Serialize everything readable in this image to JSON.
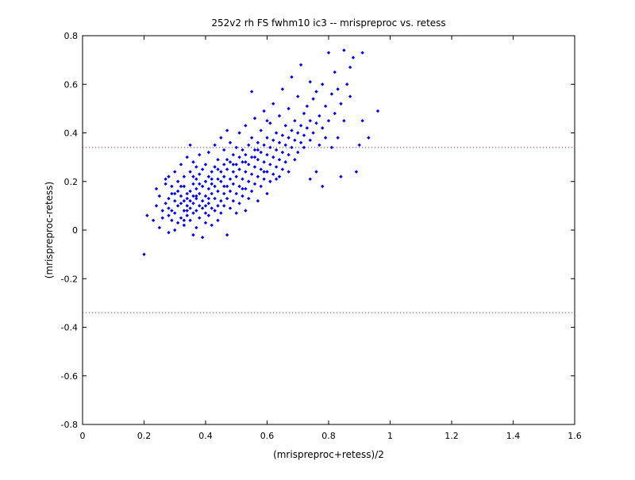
{
  "chart_data": {
    "type": "scatter",
    "title": "252v2 rh FS fwhm10 ic3 -- mrispreproc vs. retess",
    "xlabel": "(mrispreproc+retess)/2",
    "ylabel": "(mrispreproc-retess)",
    "xlim": [
      0,
      1.6
    ],
    "ylim": [
      -0.8,
      0.8
    ],
    "xticks": [
      "0",
      "0.2",
      "0.4",
      "0.6",
      "0.8",
      "1",
      "1.2",
      "1.4",
      "1.6"
    ],
    "yticks": [
      "0.8",
      "0.6",
      "0.4",
      "0.2",
      "0",
      "-0.2",
      "-0.4",
      "-0.6",
      "-0.8"
    ],
    "xtick_values": [
      0,
      0.2,
      0.4,
      0.6,
      0.8,
      1.0,
      1.2,
      1.4,
      1.6
    ],
    "ytick_values": [
      0.8,
      0.6,
      0.4,
      0.2,
      0,
      -0.2,
      -0.4,
      -0.6,
      -0.8
    ],
    "grid": false,
    "marker_color": "#0000ff",
    "reference_color": "#ff0000",
    "reference_lines": [
      0.34,
      -0.34
    ],
    "series": [
      {
        "values": [
          [
            0.2,
            -0.1
          ],
          [
            0.21,
            0.06
          ],
          [
            0.23,
            0.04
          ],
          [
            0.24,
            0.1
          ],
          [
            0.24,
            0.17
          ],
          [
            0.25,
            0.01
          ],
          [
            0.25,
            0.14
          ],
          [
            0.26,
            0.05
          ],
          [
            0.26,
            0.08
          ],
          [
            0.27,
            0.19
          ],
          [
            0.27,
            0.11
          ],
          [
            0.27,
            0.21
          ],
          [
            0.28,
            -0.01
          ],
          [
            0.28,
            0.06
          ],
          [
            0.28,
            0.13
          ],
          [
            0.28,
            0.22
          ],
          [
            0.29,
            0.04
          ],
          [
            0.29,
            0.08
          ],
          [
            0.29,
            0.15
          ],
          [
            0.29,
            0.18
          ],
          [
            0.3,
            0.0
          ],
          [
            0.3,
            0.07
          ],
          [
            0.3,
            0.12
          ],
          [
            0.3,
            0.24
          ],
          [
            0.31,
            0.03
          ],
          [
            0.31,
            0.1
          ],
          [
            0.31,
            0.16
          ],
          [
            0.31,
            0.2
          ],
          [
            0.32,
            0.05
          ],
          [
            0.32,
            0.11
          ],
          [
            0.32,
            0.14
          ],
          [
            0.32,
            0.27
          ],
          [
            0.33,
            0.02
          ],
          [
            0.33,
            0.08
          ],
          [
            0.33,
            0.12
          ],
          [
            0.33,
            0.18
          ],
          [
            0.33,
            0.22
          ],
          [
            0.34,
            0.06
          ],
          [
            0.34,
            0.1
          ],
          [
            0.34,
            0.13
          ],
          [
            0.34,
            0.15
          ],
          [
            0.34,
            0.3
          ],
          [
            0.35,
            0.04
          ],
          [
            0.35,
            0.09
          ],
          [
            0.35,
            0.12
          ],
          [
            0.35,
            0.16
          ],
          [
            0.35,
            0.24
          ],
          [
            0.35,
            0.35
          ],
          [
            0.36,
            -0.02
          ],
          [
            0.36,
            0.07
          ],
          [
            0.36,
            0.11
          ],
          [
            0.36,
            0.14
          ],
          [
            0.36,
            0.19
          ],
          [
            0.36,
            0.28
          ],
          [
            0.37,
            0.01
          ],
          [
            0.37,
            0.08
          ],
          [
            0.37,
            0.13
          ],
          [
            0.37,
            0.17
          ],
          [
            0.37,
            0.21
          ],
          [
            0.37,
            0.26
          ],
          [
            0.38,
            0.05
          ],
          [
            0.38,
            0.1
          ],
          [
            0.38,
            0.15
          ],
          [
            0.38,
            0.23
          ],
          [
            0.38,
            0.31
          ],
          [
            0.39,
            -0.03
          ],
          [
            0.39,
            0.09
          ],
          [
            0.39,
            0.12
          ],
          [
            0.39,
            0.18
          ],
          [
            0.39,
            0.25
          ],
          [
            0.4,
            0.03
          ],
          [
            0.4,
            0.07
          ],
          [
            0.4,
            0.14
          ],
          [
            0.4,
            0.2
          ],
          [
            0.4,
            0.27
          ],
          [
            0.41,
            0.06
          ],
          [
            0.41,
            0.11
          ],
          [
            0.41,
            0.17
          ],
          [
            0.41,
            0.22
          ],
          [
            0.41,
            0.32
          ],
          [
            0.42,
            0.02
          ],
          [
            0.42,
            0.09
          ],
          [
            0.42,
            0.15
          ],
          [
            0.42,
            0.19
          ],
          [
            0.42,
            0.24
          ],
          [
            0.43,
            0.08
          ],
          [
            0.43,
            0.13
          ],
          [
            0.43,
            0.18
          ],
          [
            0.43,
            0.26
          ],
          [
            0.43,
            0.35
          ],
          [
            0.44,
            0.04
          ],
          [
            0.44,
            0.1
          ],
          [
            0.44,
            0.16
          ],
          [
            0.44,
            0.21
          ],
          [
            0.44,
            0.29
          ],
          [
            0.45,
            0.07
          ],
          [
            0.45,
            0.12
          ],
          [
            0.45,
            0.2
          ],
          [
            0.45,
            0.24
          ],
          [
            0.45,
            0.38
          ],
          [
            0.46,
            0.1
          ],
          [
            0.46,
            0.15
          ],
          [
            0.46,
            0.22
          ],
          [
            0.46,
            0.27
          ],
          [
            0.46,
            0.33
          ],
          [
            0.47,
            -0.02
          ],
          [
            0.47,
            0.13
          ],
          [
            0.47,
            0.18
          ],
          [
            0.47,
            0.25
          ],
          [
            0.47,
            0.41
          ],
          [
            0.48,
            0.09
          ],
          [
            0.48,
            0.16
          ],
          [
            0.48,
            0.21
          ],
          [
            0.48,
            0.28
          ],
          [
            0.48,
            0.36
          ],
          [
            0.49,
            0.12
          ],
          [
            0.49,
            0.19
          ],
          [
            0.49,
            0.24
          ],
          [
            0.49,
            0.31
          ],
          [
            0.5,
            0.07
          ],
          [
            0.5,
            0.15
          ],
          [
            0.5,
            0.22
          ],
          [
            0.5,
            0.27
          ],
          [
            0.5,
            0.34
          ],
          [
            0.51,
            0.11
          ],
          [
            0.51,
            0.18
          ],
          [
            0.51,
            0.25
          ],
          [
            0.51,
            0.3
          ],
          [
            0.51,
            0.4
          ],
          [
            0.52,
            0.14
          ],
          [
            0.52,
            0.21
          ],
          [
            0.52,
            0.28
          ],
          [
            0.52,
            0.33
          ],
          [
            0.53,
            0.08
          ],
          [
            0.53,
            0.17
          ],
          [
            0.53,
            0.24
          ],
          [
            0.53,
            0.31
          ],
          [
            0.53,
            0.43
          ],
          [
            0.54,
            0.13
          ],
          [
            0.54,
            0.2
          ],
          [
            0.54,
            0.27
          ],
          [
            0.54,
            0.35
          ],
          [
            0.55,
            0.16
          ],
          [
            0.55,
            0.23
          ],
          [
            0.55,
            0.3
          ],
          [
            0.55,
            0.38
          ],
          [
            0.55,
            0.57
          ],
          [
            0.56,
            0.19
          ],
          [
            0.56,
            0.26
          ],
          [
            0.56,
            0.33
          ],
          [
            0.56,
            0.46
          ],
          [
            0.57,
            0.12
          ],
          [
            0.57,
            0.22
          ],
          [
            0.57,
            0.29
          ],
          [
            0.57,
            0.36
          ],
          [
            0.58,
            0.18
          ],
          [
            0.58,
            0.25
          ],
          [
            0.58,
            0.32
          ],
          [
            0.58,
            0.41
          ],
          [
            0.59,
            0.21
          ],
          [
            0.59,
            0.28
          ],
          [
            0.59,
            0.35
          ],
          [
            0.59,
            0.49
          ],
          [
            0.6,
            0.15
          ],
          [
            0.6,
            0.24
          ],
          [
            0.6,
            0.31
          ],
          [
            0.6,
            0.38
          ],
          [
            0.61,
            0.2
          ],
          [
            0.61,
            0.27
          ],
          [
            0.61,
            0.34
          ],
          [
            0.61,
            0.44
          ],
          [
            0.62,
            0.23
          ],
          [
            0.62,
            0.3
          ],
          [
            0.62,
            0.37
          ],
          [
            0.62,
            0.52
          ],
          [
            0.63,
            0.26
          ],
          [
            0.63,
            0.33
          ],
          [
            0.63,
            0.4
          ],
          [
            0.64,
            0.22
          ],
          [
            0.64,
            0.29
          ],
          [
            0.64,
            0.36
          ],
          [
            0.64,
            0.47
          ],
          [
            0.65,
            0.25
          ],
          [
            0.65,
            0.32
          ],
          [
            0.65,
            0.39
          ],
          [
            0.65,
            0.58
          ],
          [
            0.66,
            0.28
          ],
          [
            0.66,
            0.35
          ],
          [
            0.66,
            0.43
          ],
          [
            0.67,
            0.24
          ],
          [
            0.67,
            0.31
          ],
          [
            0.67,
            0.38
          ],
          [
            0.67,
            0.5
          ],
          [
            0.68,
            0.34
          ],
          [
            0.68,
            0.41
          ],
          [
            0.68,
            0.63
          ],
          [
            0.69,
            0.29
          ],
          [
            0.69,
            0.37
          ],
          [
            0.69,
            0.45
          ],
          [
            0.7,
            0.32
          ],
          [
            0.7,
            0.4
          ],
          [
            0.7,
            0.55
          ],
          [
            0.71,
            0.36
          ],
          [
            0.71,
            0.43
          ],
          [
            0.71,
            0.68
          ],
          [
            0.72,
            0.34
          ],
          [
            0.72,
            0.39
          ],
          [
            0.72,
            0.48
          ],
          [
            0.73,
            0.42
          ],
          [
            0.73,
            0.51
          ],
          [
            0.74,
            0.37
          ],
          [
            0.74,
            0.45
          ],
          [
            0.74,
            0.61
          ],
          [
            0.75,
            0.4
          ],
          [
            0.75,
            0.54
          ],
          [
            0.76,
            0.44
          ],
          [
            0.76,
            0.57
          ],
          [
            0.77,
            0.35
          ],
          [
            0.77,
            0.47
          ],
          [
            0.78,
            0.42
          ],
          [
            0.78,
            0.6
          ],
          [
            0.79,
            0.38
          ],
          [
            0.79,
            0.51
          ],
          [
            0.8,
            0.45
          ],
          [
            0.8,
            0.73
          ],
          [
            0.81,
            0.34
          ],
          [
            0.81,
            0.56
          ],
          [
            0.82,
            0.48
          ],
          [
            0.82,
            0.65
          ],
          [
            0.83,
            0.38
          ],
          [
            0.83,
            0.58
          ],
          [
            0.84,
            0.52
          ],
          [
            0.85,
            0.45
          ],
          [
            0.85,
            0.74
          ],
          [
            0.86,
            0.6
          ],
          [
            0.87,
            0.55
          ],
          [
            0.87,
            0.67
          ],
          [
            0.88,
            0.71
          ],
          [
            0.89,
            0.24
          ],
          [
            0.9,
            0.35
          ],
          [
            0.91,
            0.73
          ],
          [
            0.91,
            0.45
          ],
          [
            0.93,
            0.38
          ],
          [
            0.96,
            0.49
          ],
          [
            0.74,
            0.21
          ],
          [
            0.78,
            0.18
          ],
          [
            0.84,
            0.22
          ],
          [
            0.76,
            0.24
          ],
          [
            0.32,
            0.18
          ],
          [
            0.34,
            0.08
          ],
          [
            0.38,
            0.19
          ],
          [
            0.41,
            0.13
          ],
          [
            0.44,
            0.25
          ],
          [
            0.47,
            0.29
          ],
          [
            0.52,
            0.17
          ],
          [
            0.56,
            0.3
          ],
          [
            0.59,
            0.24
          ],
          [
            0.63,
            0.21
          ],
          [
            0.36,
            0.22
          ],
          [
            0.4,
            0.1
          ],
          [
            0.3,
            0.15
          ],
          [
            0.28,
            0.09
          ],
          [
            0.33,
            0.04
          ],
          [
            0.37,
            0.14
          ],
          [
            0.42,
            0.21
          ],
          [
            0.46,
            0.18
          ],
          [
            0.49,
            0.27
          ],
          [
            0.53,
            0.28
          ],
          [
            0.57,
            0.33
          ],
          [
            0.6,
            0.45
          ]
        ]
      }
    ]
  }
}
